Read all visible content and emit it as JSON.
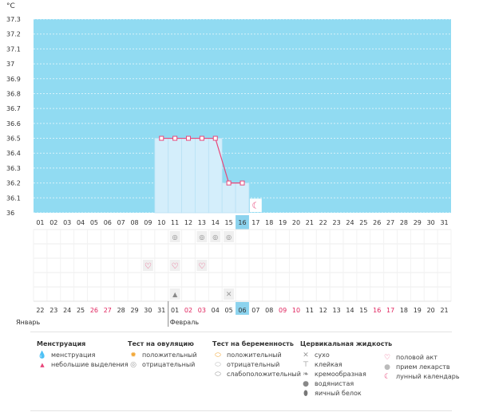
{
  "chart_data": {
    "type": "line",
    "ylabel": "°C",
    "yticks": [
      "36",
      "36.1",
      "36.2",
      "36.3",
      "36.4",
      "36.5",
      "36.6",
      "36.7",
      "36.8",
      "36.9",
      "37",
      "37.1",
      "37.2",
      "37.3"
    ],
    "ylim": [
      36,
      37.3
    ],
    "cycle_days": [
      "01",
      "02",
      "03",
      "04",
      "05",
      "06",
      "07",
      "08",
      "09",
      "10",
      "11",
      "12",
      "13",
      "14",
      "15",
      "16",
      "17",
      "18",
      "19",
      "20",
      "21",
      "22",
      "23",
      "24",
      "25",
      "26",
      "27",
      "28",
      "29",
      "30",
      "31"
    ],
    "current_day_index": 15,
    "highlight_days": [
      "25",
      "26"
    ],
    "temperature_series": {
      "x": [
        "10",
        "11",
        "12",
        "13",
        "14",
        "15",
        "16"
      ],
      "y": [
        36.5,
        36.5,
        36.5,
        36.5,
        36.5,
        36.2,
        36.2
      ]
    },
    "moon_day": "17",
    "ovulation_negative_days": [
      "11",
      "13",
      "14",
      "15"
    ],
    "intercourse_days": [
      "09",
      "11",
      "13"
    ],
    "small_discharge_days": [
      "11"
    ],
    "dry_cervical_days": [
      "15"
    ],
    "dates": [
      "22",
      "23",
      "24",
      "25",
      "26",
      "27",
      "28",
      "29",
      "30",
      "31",
      "01",
      "02",
      "03",
      "04",
      "05",
      "06",
      "07",
      "08",
      "09",
      "10",
      "11",
      "12",
      "13",
      "14",
      "15",
      "16",
      "17",
      "18",
      "19",
      "20",
      "21"
    ],
    "red_dates": [
      "26",
      "27",
      "02",
      "03",
      "09",
      "10",
      "16",
      "17"
    ],
    "current_date_index": 15,
    "month_labels": [
      {
        "label": "Январь",
        "at_index": 0
      },
      {
        "label": "Февраль",
        "at_index": 10
      }
    ],
    "colors": {
      "background_fill": "#91dbf2",
      "past_column": "#d4eefb",
      "line": "#e8477a",
      "current_day": "#8cd3ee",
      "weekend_text": "#e0245e"
    }
  },
  "legend": {
    "menstruation": {
      "title": "Менструация",
      "items": [
        {
          "icon": "blood-drop-icon",
          "label": "менструация"
        },
        {
          "icon": "small-drop-icon",
          "label": "небольшие выделения"
        }
      ]
    },
    "ovulation": {
      "title": "Тест на овуляцию",
      "items": [
        {
          "icon": "ovulation-positive-icon",
          "label": "положительный"
        },
        {
          "icon": "ovulation-negative-icon",
          "label": "отрицательный"
        }
      ]
    },
    "pregnancy": {
      "title": "Тест на беременность",
      "items": [
        {
          "icon": "pregnancy-positive-icon",
          "label": "положительный"
        },
        {
          "icon": "pregnancy-negative-icon",
          "label": "отрицательный"
        },
        {
          "icon": "pregnancy-weak-icon",
          "label": "слабоположительный"
        }
      ]
    },
    "cervical": {
      "title": "Цервикальная жидкость",
      "items": [
        {
          "icon": "dry-icon",
          "label": "сухо"
        },
        {
          "icon": "sticky-icon",
          "label": "клейкая"
        },
        {
          "icon": "creamy-icon",
          "label": "кремообразная"
        },
        {
          "icon": "watery-icon",
          "label": "водянистая"
        },
        {
          "icon": "egg-white-icon",
          "label": "яичный белок"
        }
      ]
    },
    "other": {
      "items": [
        {
          "icon": "heart-icon",
          "label": "половой акт"
        },
        {
          "icon": "pill-icon",
          "label": "прием лекарств"
        },
        {
          "icon": "moon-icon",
          "label": "лунный календарь"
        }
      ]
    }
  }
}
